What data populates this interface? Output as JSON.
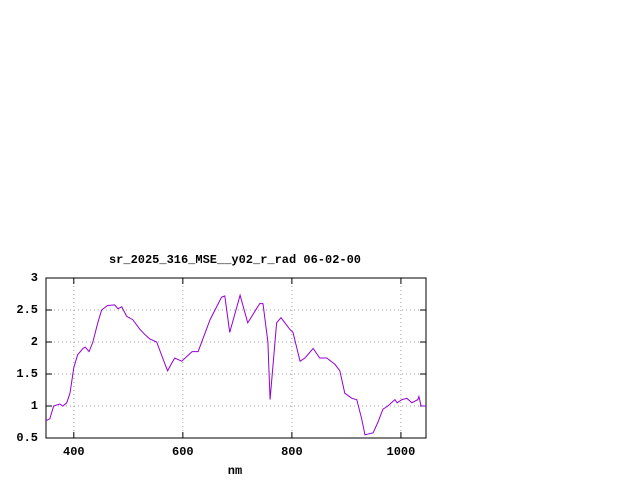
{
  "chart_data": {
    "type": "line",
    "title": "sr_2025_316_MSE__y02_r_rad 06-02-00",
    "x_label": "nm",
    "x": [
      349,
      356,
      363,
      374,
      380,
      387,
      393,
      400,
      407,
      417,
      421,
      428,
      435,
      444,
      451,
      462,
      475,
      481,
      488,
      497,
      508,
      521,
      530,
      539,
      552,
      563,
      572,
      585,
      598,
      617,
      628,
      650,
      671,
      677,
      686,
      705,
      719,
      741,
      747,
      756,
      760,
      772,
      780,
      796,
      802,
      815,
      824,
      839,
      851,
      864,
      879,
      888,
      897,
      910,
      919,
      928,
      934,
      949,
      958,
      967,
      976,
      989,
      993,
      1002,
      1011,
      1020,
      1031,
      1033,
      1037,
      1046
    ],
    "series": [
      {
        "name": "sr_2025_316_MSE__y02_r_rad",
        "color": "#9400d3",
        "values": [
          0.77,
          0.8,
          1.0,
          1.03,
          1.0,
          1.05,
          1.2,
          1.6,
          1.8,
          1.9,
          1.92,
          1.85,
          2.0,
          2.3,
          2.5,
          2.57,
          2.58,
          2.52,
          2.55,
          2.4,
          2.35,
          2.2,
          2.12,
          2.05,
          2.0,
          1.75,
          1.55,
          1.75,
          1.7,
          1.85,
          1.85,
          2.35,
          2.7,
          2.72,
          2.15,
          2.73,
          2.3,
          2.6,
          2.6,
          2.0,
          1.1,
          2.3,
          2.38,
          2.2,
          2.15,
          1.7,
          1.75,
          1.9,
          1.75,
          1.75,
          1.65,
          1.55,
          1.2,
          1.12,
          1.1,
          0.8,
          0.55,
          0.58,
          0.75,
          0.95,
          1.0,
          1.1,
          1.05,
          1.1,
          1.12,
          1.05,
          1.1,
          1.15,
          1.0,
          1.0
        ]
      }
    ],
    "xlim": [
      349,
      1046
    ],
    "ylim": [
      0.5,
      3
    ],
    "xticks": [
      400,
      600,
      800,
      1000
    ],
    "yticks": [
      0.5,
      1,
      1.5,
      2,
      2.5,
      3
    ],
    "grid": true
  }
}
